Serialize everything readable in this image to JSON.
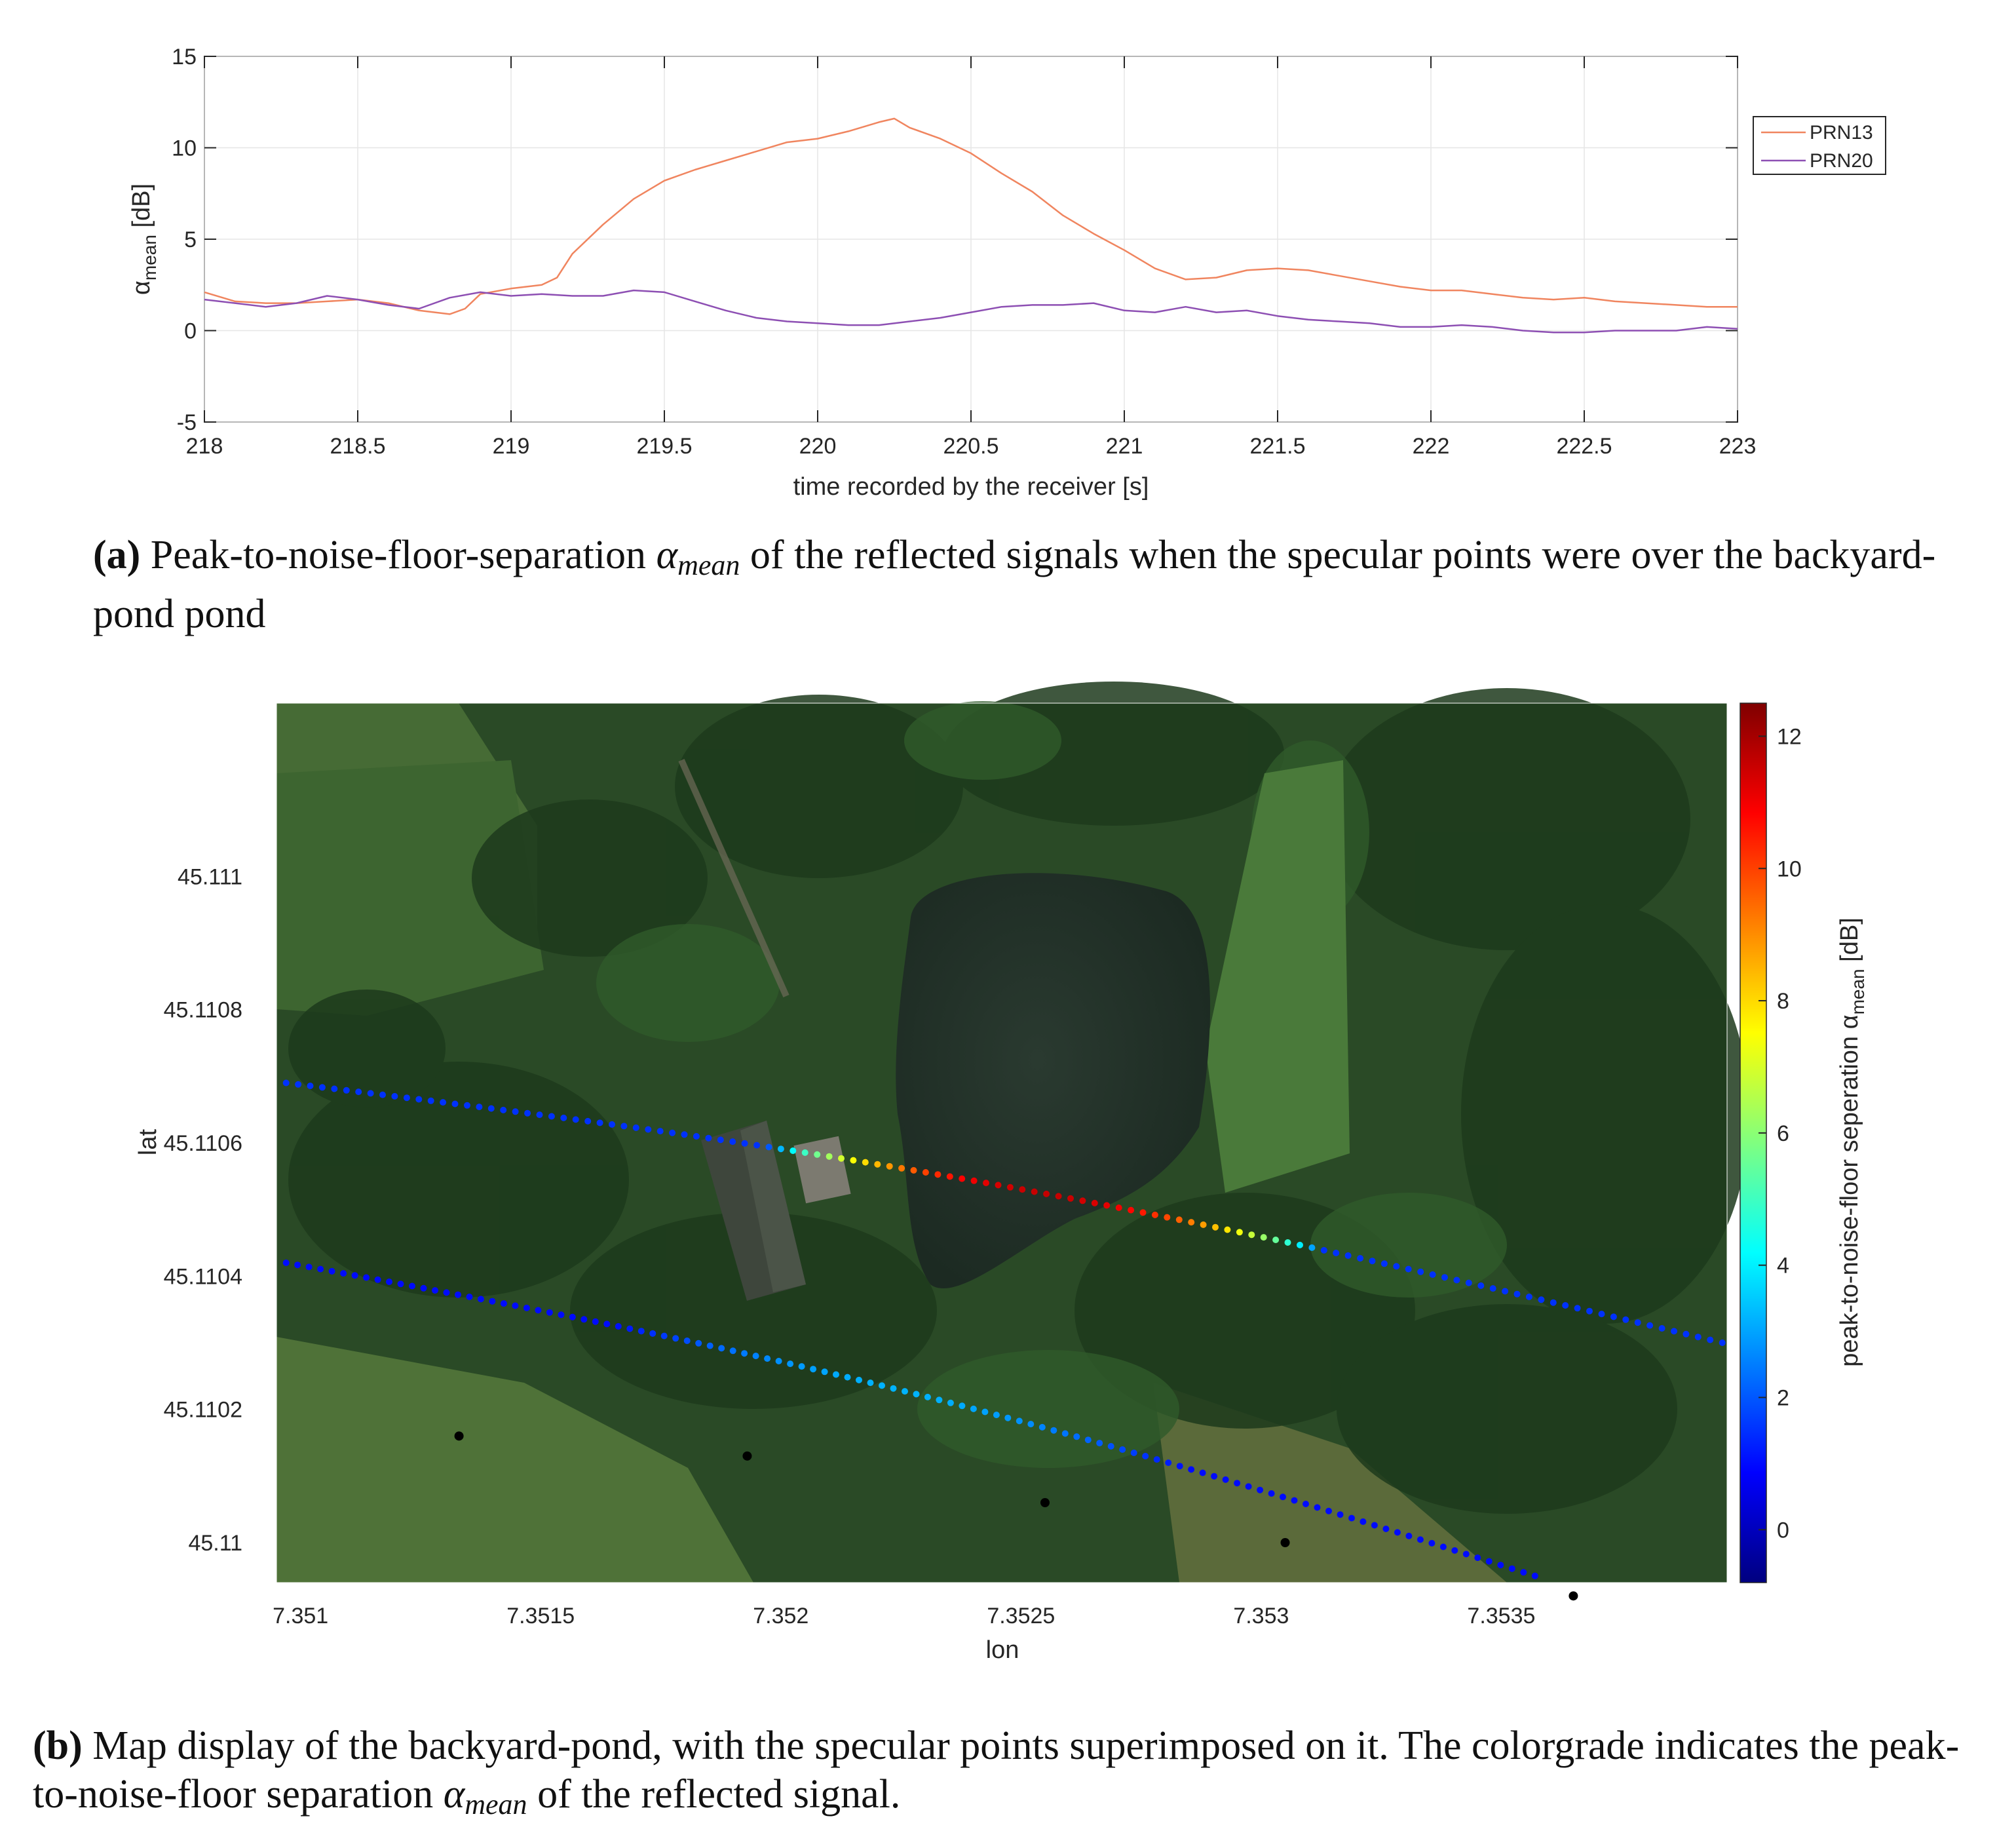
{
  "chart_data": [
    {
      "type": "line",
      "xlabel": "time recorded by the receiver [s]",
      "ylabel_main": "α",
      "ylabel_sub": "mean",
      "ylabel_unit": " [dB]",
      "xlim": [
        218,
        223
      ],
      "ylim": [
        -5,
        15
      ],
      "xticks": [
        218,
        218.5,
        219,
        219.5,
        220,
        220.5,
        221,
        221.5,
        222,
        222.5,
        223
      ],
      "xtick_labels": [
        "218",
        "218.5",
        "219",
        "219.5",
        "220",
        "220.5",
        "221",
        "221.5",
        "222",
        "222.5",
        "223"
      ],
      "yticks": [
        -5,
        0,
        5,
        10,
        15
      ],
      "ytick_labels": [
        "-5",
        "0",
        "5",
        "10",
        "15"
      ],
      "grid": true,
      "legend": "outside-right",
      "series": [
        {
          "name": "PRN13",
          "color": "#f0855f",
          "x": [
            218,
            218.1,
            218.2,
            218.3,
            218.4,
            218.5,
            218.6,
            218.7,
            218.8,
            218.85,
            218.9,
            219.0,
            219.1,
            219.15,
            219.2,
            219.3,
            219.4,
            219.5,
            219.6,
            219.7,
            219.8,
            219.9,
            220.0,
            220.1,
            220.2,
            220.25,
            220.3,
            220.4,
            220.5,
            220.6,
            220.7,
            220.8,
            220.9,
            221.0,
            221.1,
            221.2,
            221.3,
            221.4,
            221.5,
            221.6,
            221.7,
            221.8,
            221.9,
            222.0,
            222.1,
            222.2,
            222.3,
            222.4,
            222.5,
            222.6,
            222.7,
            222.8,
            222.9,
            223.0
          ],
          "values": [
            2.1,
            1.6,
            1.5,
            1.5,
            1.6,
            1.7,
            1.5,
            1.1,
            0.9,
            1.2,
            2.0,
            2.3,
            2.5,
            2.9,
            4.2,
            5.8,
            7.2,
            8.2,
            8.8,
            9.3,
            9.8,
            10.3,
            10.5,
            10.9,
            11.4,
            11.6,
            11.1,
            10.5,
            9.7,
            8.6,
            7.6,
            6.3,
            5.3,
            4.4,
            3.4,
            2.8,
            2.9,
            3.3,
            3.4,
            3.3,
            3.0,
            2.7,
            2.4,
            2.2,
            2.2,
            2.0,
            1.8,
            1.7,
            1.8,
            1.6,
            1.5,
            1.4,
            1.3,
            1.3
          ]
        },
        {
          "name": "PRN20",
          "color": "#8d4fb3",
          "x": [
            218,
            218.1,
            218.2,
            218.3,
            218.4,
            218.5,
            218.6,
            218.7,
            218.8,
            218.9,
            219.0,
            219.1,
            219.2,
            219.3,
            219.4,
            219.5,
            219.6,
            219.7,
            219.8,
            219.9,
            220.0,
            220.1,
            220.2,
            220.3,
            220.4,
            220.5,
            220.6,
            220.7,
            220.8,
            220.9,
            221.0,
            221.1,
            221.2,
            221.3,
            221.4,
            221.5,
            221.6,
            221.7,
            221.8,
            221.9,
            222.0,
            222.1,
            222.2,
            222.3,
            222.4,
            222.5,
            222.6,
            222.7,
            222.8,
            222.9,
            223.0
          ],
          "values": [
            1.7,
            1.5,
            1.3,
            1.5,
            1.9,
            1.7,
            1.4,
            1.2,
            1.8,
            2.1,
            1.9,
            2.0,
            1.9,
            1.9,
            2.2,
            2.1,
            1.6,
            1.1,
            0.7,
            0.5,
            0.4,
            0.3,
            0.3,
            0.5,
            0.7,
            1.0,
            1.3,
            1.4,
            1.4,
            1.5,
            1.1,
            1.0,
            1.3,
            1.0,
            1.1,
            0.8,
            0.6,
            0.5,
            0.4,
            0.2,
            0.2,
            0.3,
            0.2,
            0.0,
            -0.1,
            -0.1,
            0.0,
            0.0,
            0.0,
            0.2,
            0.1
          ]
        }
      ]
    },
    {
      "type": "scatter",
      "xlabel": "lon",
      "ylabel": "lat",
      "xlim": [
        7.35095,
        7.35397
      ],
      "ylim": [
        45.10994,
        45.11126
      ],
      "xticks": [
        7.351,
        7.3515,
        7.352,
        7.3525,
        7.353,
        7.3535
      ],
      "xtick_labels": [
        "7.351",
        "7.3515",
        "7.352",
        "7.3525",
        "7.353",
        "7.3535"
      ],
      "yticks": [
        45.11,
        45.1102,
        45.1104,
        45.1106,
        45.1108,
        45.111
      ],
      "ytick_labels": [
        "45.11",
        "45.1102",
        "45.1104",
        "45.1106",
        "45.1108",
        "45.111"
      ],
      "colorbar_label_main": "peak-to-noise-floor seperation α",
      "colorbar_label_sub": "mean",
      "colorbar_label_unit": " [dB]",
      "colorbar_range": [
        -0.8,
        12.5
      ],
      "colorbar_ticks": [
        0,
        2,
        4,
        6,
        8,
        10,
        12
      ],
      "colorbar_tick_labels": [
        "0",
        "2",
        "4",
        "6",
        "8",
        "10",
        "12"
      ],
      "colormap": "jet",
      "background": "aerial-photo",
      "tracks": [
        {
          "lon_start": 7.35097,
          "lat_start": 45.11069,
          "lon_end": 7.35396,
          "lat_end": 45.1103,
          "n": 120,
          "peak_value": 11.6,
          "base_value": 1.5
        },
        {
          "lon_start": 7.35097,
          "lat_start": 45.11042,
          "lon_end": 7.35357,
          "lat_end": 45.10995,
          "n": 110,
          "peak_value": 3.2,
          "base_value": 1.0
        }
      ],
      "black_markers": [
        {
          "lon": 7.35133,
          "lat": 45.11016
        },
        {
          "lon": 7.35193,
          "lat": 45.11013
        },
        {
          "lon": 7.35255,
          "lat": 45.11006
        },
        {
          "lon": 7.35305,
          "lat": 45.11
        },
        {
          "lon": 7.35365,
          "lat": 45.10992
        }
      ]
    }
  ],
  "captions": {
    "a_label": "(a)",
    "a_text_1": " Peak-to-noise-floor-separation ",
    "a_alpha": "α",
    "a_sub": "mean",
    "a_text_2": " of the reflected signals when the specular points were over the backyard-pond pond",
    "b_label": "(b)",
    "b_text_1": " Map display of the backyard-pond, with the specular points superimposed on it. The colorgrade indicates the peak-to-noise-floor separation ",
    "b_alpha": "α",
    "b_sub": "mean",
    "b_text_2": " of the reflected signal."
  }
}
